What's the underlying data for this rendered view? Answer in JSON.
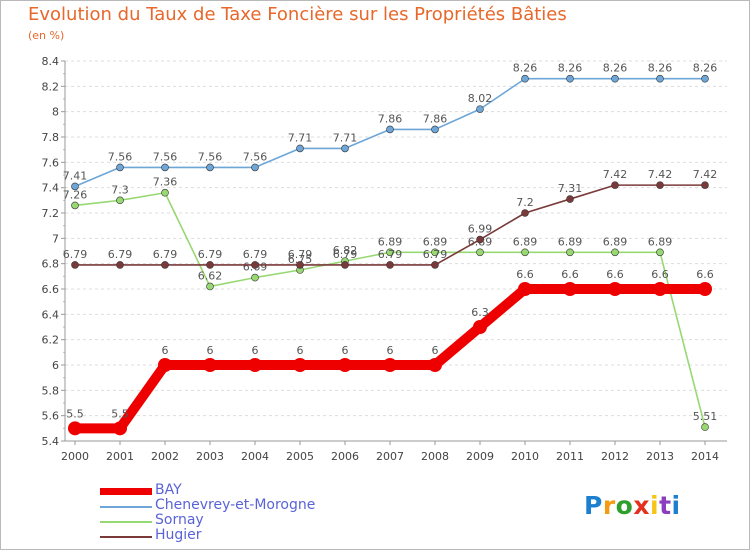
{
  "title": "Evolution du Taux de Taxe Foncière sur les Propriétés Bâties",
  "unit_label": "(en %)",
  "brand": {
    "text": "Proxiti",
    "colors": [
      "#1c7fd0",
      "#f39b12",
      "#2c9f2c",
      "#e3311e",
      "#f5c518",
      "#8b3fbf",
      "#1c7fd0"
    ]
  },
  "chart_data": {
    "type": "line",
    "title": "Evolution du Taux de Taxe Foncière sur les Propriétés Bâties",
    "ylabel": "(en %)",
    "xlabel": "",
    "x": [
      "2000",
      "2001",
      "2002",
      "2003",
      "2004",
      "2005",
      "2006",
      "2007",
      "2008",
      "2009",
      "2010",
      "2011",
      "2012",
      "2013",
      "2014"
    ],
    "ylim": [
      5.4,
      8.4
    ],
    "yticks": [
      "5.4",
      "5.6",
      "5.8",
      "6",
      "6.2",
      "6.4",
      "6.6",
      "6.8",
      "7",
      "7.2",
      "7.4",
      "7.6",
      "7.8",
      "8",
      "8.2",
      "8.4"
    ],
    "grid": true,
    "legend_position": "bottom-left",
    "series": [
      {
        "name": "BAY",
        "color": "#ee0000",
        "values": [
          5.5,
          5.5,
          6,
          6,
          6,
          6,
          6,
          6,
          6,
          6.3,
          6.6,
          6.6,
          6.6,
          6.6,
          6.6
        ],
        "labels": [
          "5.5",
          "5.5",
          "6",
          "6",
          "6",
          "6",
          "6",
          "6",
          "6",
          "6.3",
          "6.6",
          "6.6",
          "6.6",
          "6.6",
          "6.6"
        ]
      },
      {
        "name": "Chenevrey-et-Morogne",
        "color": "#6ea6d8",
        "values": [
          7.41,
          7.56,
          7.56,
          7.56,
          7.56,
          7.71,
          7.71,
          7.86,
          7.86,
          8.02,
          8.26,
          8.26,
          8.26,
          8.26,
          8.26
        ],
        "labels": [
          "7.41",
          "7.56",
          "7.56",
          "7.56",
          "7.56",
          "7.71",
          "7.71",
          "7.86",
          "7.86",
          "8.02",
          "8.26",
          "8.26",
          "8.26",
          "8.26",
          "8.26"
        ]
      },
      {
        "name": "Sornay",
        "color": "#98d873",
        "values": [
          7.26,
          7.3,
          7.36,
          6.62,
          6.69,
          6.75,
          6.82,
          6.89,
          6.89,
          6.89,
          6.89,
          6.89,
          6.89,
          6.89,
          5.51
        ],
        "labels": [
          "7.26",
          "7.3",
          "7.36",
          "6.62",
          "6.69",
          "6.75",
          "6.82",
          "6.89",
          "6.89",
          "6.89",
          "6.89",
          "6.89",
          "6.89",
          "6.89",
          "5.51"
        ]
      },
      {
        "name": "Hugier",
        "color": "#7a3a3a",
        "values": [
          6.79,
          6.79,
          6.79,
          6.79,
          6.79,
          6.79,
          6.79,
          6.79,
          6.79,
          6.99,
          7.2,
          7.31,
          7.42,
          7.42,
          7.42
        ],
        "labels": [
          "6.79",
          "6.79",
          "6.79",
          "6.79",
          "6.79",
          "6.79",
          "6.79",
          "6.79",
          "6.79",
          "6.99",
          "7.2",
          "7.31",
          "7.42",
          "7.42",
          "7.42"
        ]
      }
    ]
  }
}
